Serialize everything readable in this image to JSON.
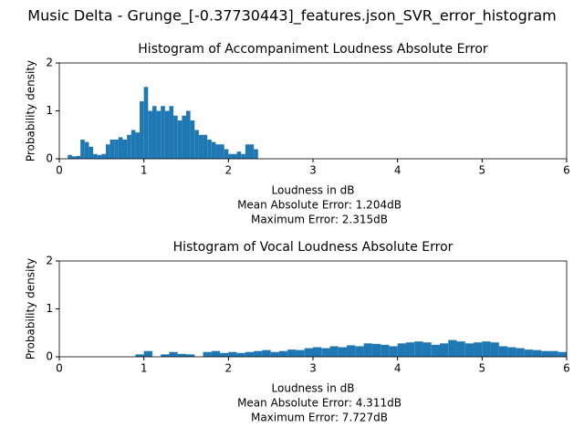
{
  "title": "Music Delta - Grunge_[-0.37730443]_features.json_SVR_error_histogram",
  "chart_data": [
    {
      "type": "histogram",
      "title": "Histogram of Accompaniment Loudness Absolute Error",
      "xlabel": "Loudness in dB",
      "ylabel": "Probability density",
      "annotations": [
        "Mean Absolute Error: 1.204dB",
        "Maximum Error: 2.315dB"
      ],
      "color": "#1f77b4",
      "xlim": [
        0,
        6
      ],
      "ylim": [
        0,
        2
      ],
      "xticks": [
        0,
        1,
        2,
        3,
        4,
        5,
        6
      ],
      "yticks": [
        0,
        1,
        2
      ],
      "bins": [
        0.1,
        0.15,
        0.2,
        0.25,
        0.3,
        0.35,
        0.4,
        0.45,
        0.5,
        0.55,
        0.6,
        0.65,
        0.7,
        0.75,
        0.8,
        0.85,
        0.9,
        0.95,
        1.0,
        1.05,
        1.1,
        1.15,
        1.2,
        1.25,
        1.3,
        1.35,
        1.4,
        1.45,
        1.5,
        1.55,
        1.6,
        1.65,
        1.7,
        1.75,
        1.8,
        1.85,
        1.9,
        1.95,
        2.0,
        2.05,
        2.1,
        2.15,
        2.2,
        2.25,
        2.3,
        2.35
      ],
      "values": [
        0.08,
        0.05,
        0.06,
        0.4,
        0.35,
        0.25,
        0.1,
        0.08,
        0.1,
        0.3,
        0.4,
        0.4,
        0.45,
        0.4,
        0.5,
        0.6,
        0.55,
        1.2,
        1.5,
        1.0,
        1.1,
        1.0,
        1.1,
        1.0,
        1.1,
        0.9,
        0.8,
        0.9,
        1.0,
        0.8,
        0.6,
        0.5,
        0.5,
        0.4,
        0.35,
        0.3,
        0.3,
        0.2,
        0.1,
        0.1,
        0.15,
        0.1,
        0.3,
        0.3,
        0.2
      ]
    },
    {
      "type": "histogram",
      "title": "Histogram of Vocal Loudness Absolute Error",
      "xlabel": "Loudness in dB",
      "ylabel": "Probability density",
      "annotations": [
        "Mean Absolute Error: 4.311dB",
        "Maximum Error: 7.727dB"
      ],
      "color": "#1f77b4",
      "xlim": [
        0,
        6
      ],
      "ylim": [
        0,
        2
      ],
      "xticks": [
        0,
        1,
        2,
        3,
        4,
        5,
        6
      ],
      "yticks": [
        0,
        1,
        2
      ],
      "bins": [
        0.9,
        1.0,
        1.1,
        1.2,
        1.3,
        1.4,
        1.5,
        1.6,
        1.7,
        1.8,
        1.9,
        2.0,
        2.1,
        2.2,
        2.3,
        2.4,
        2.5,
        2.6,
        2.7,
        2.8,
        2.9,
        3.0,
        3.1,
        3.2,
        3.3,
        3.4,
        3.5,
        3.6,
        3.7,
        3.8,
        3.9,
        4.0,
        4.1,
        4.2,
        4.3,
        4.4,
        4.5,
        4.6,
        4.7,
        4.8,
        4.9,
        5.0,
        5.1,
        5.2,
        5.3,
        5.4,
        5.5,
        5.6,
        5.7,
        5.8,
        5.9,
        6.0
      ],
      "values": [
        0.05,
        0.12,
        0,
        0.05,
        0.1,
        0.06,
        0.05,
        0,
        0.1,
        0.12,
        0.08,
        0.1,
        0.08,
        0.1,
        0.12,
        0.14,
        0.1,
        0.12,
        0.15,
        0.14,
        0.18,
        0.2,
        0.18,
        0.22,
        0.2,
        0.24,
        0.22,
        0.28,
        0.27,
        0.25,
        0.22,
        0.28,
        0.3,
        0.32,
        0.3,
        0.25,
        0.28,
        0.35,
        0.32,
        0.28,
        0.3,
        0.32,
        0.3,
        0.22,
        0.2,
        0.18,
        0.15,
        0.14,
        0.12,
        0.12,
        0.1
      ]
    }
  ]
}
